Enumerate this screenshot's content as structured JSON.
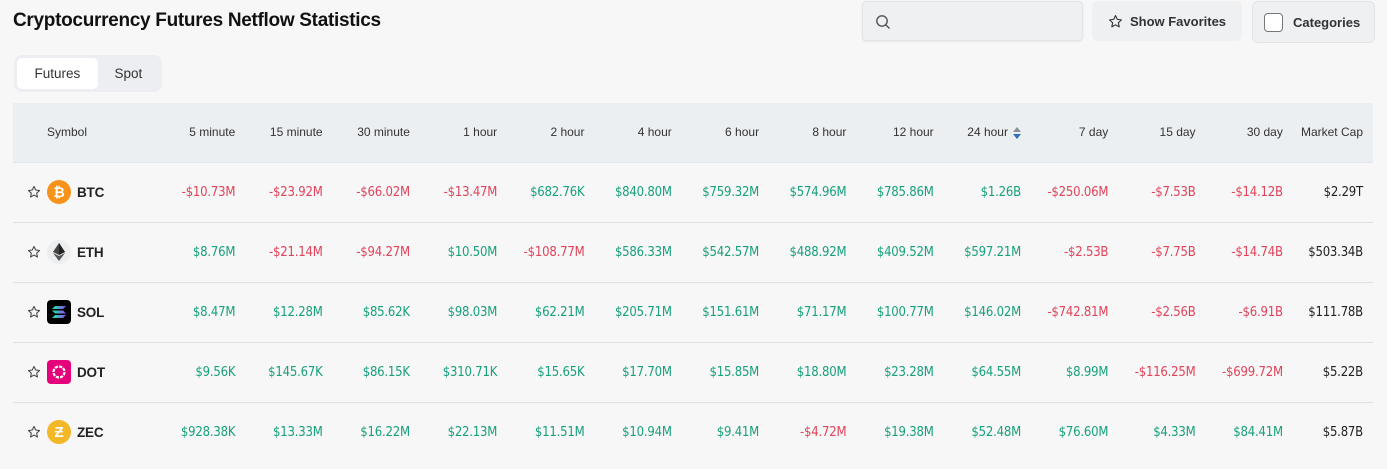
{
  "header": {
    "title": "Cryptocurrency Futures Netflow Statistics",
    "search_placeholder": "",
    "show_favorites": "Show Favorites",
    "categories": "Categories"
  },
  "tabs": [
    {
      "label": "Futures",
      "active": true
    },
    {
      "label": "Spot",
      "active": false
    }
  ],
  "colors": {
    "positive": "#17a07c",
    "negative": "#e0435a",
    "sort_active": "#2f6fb5"
  },
  "columns": [
    "Symbol",
    "5 minute",
    "15 minute",
    "30 minute",
    "1 hour",
    "2 hour",
    "4 hour",
    "6 hour",
    "8 hour",
    "12 hour",
    "24 hour",
    "7 day",
    "15 day",
    "30 day",
    "Market Cap"
  ],
  "sorted_column": "24 hour",
  "rows": [
    {
      "symbol": "BTC",
      "icon": "bitcoin-icon",
      "values": [
        "-$10.73M",
        "-$23.92M",
        "-$66.02M",
        "-$13.47M",
        "$682.76K",
        "$840.80M",
        "$759.32M",
        "$574.96M",
        "$785.86M",
        "$1.26B",
        "-$250.06M",
        "-$7.53B",
        "-$14.12B"
      ],
      "market_cap": "$2.29T"
    },
    {
      "symbol": "ETH",
      "icon": "ethereum-icon",
      "values": [
        "$8.76M",
        "-$21.14M",
        "-$94.27M",
        "$10.50M",
        "-$108.77M",
        "$586.33M",
        "$542.57M",
        "$488.92M",
        "$409.52M",
        "$597.21M",
        "-$2.53B",
        "-$7.75B",
        "-$14.74B"
      ],
      "market_cap": "$503.34B"
    },
    {
      "symbol": "SOL",
      "icon": "solana-icon",
      "values": [
        "$8.47M",
        "$12.28M",
        "$85.62K",
        "$98.03M",
        "$62.21M",
        "$205.71M",
        "$151.61M",
        "$71.17M",
        "$100.77M",
        "$146.02M",
        "-$742.81M",
        "-$2.56B",
        "-$6.91B"
      ],
      "market_cap": "$111.78B"
    },
    {
      "symbol": "DOT",
      "icon": "polkadot-icon",
      "values": [
        "$9.56K",
        "$145.67K",
        "$86.15K",
        "$310.71K",
        "$15.65K",
        "$17.70M",
        "$15.85M",
        "$18.80M",
        "$23.28M",
        "$64.55M",
        "$8.99M",
        "-$116.25M",
        "-$699.72M"
      ],
      "market_cap": "$5.22B"
    },
    {
      "symbol": "ZEC",
      "icon": "zcash-icon",
      "values": [
        "$928.38K",
        "$13.33M",
        "$16.22M",
        "$22.13M",
        "$11.51M",
        "$10.94M",
        "$9.41M",
        "-$4.72M",
        "$19.38M",
        "$52.48M",
        "$76.60M",
        "$4.33M",
        "$84.41M"
      ],
      "market_cap": "$5.87B"
    }
  ]
}
